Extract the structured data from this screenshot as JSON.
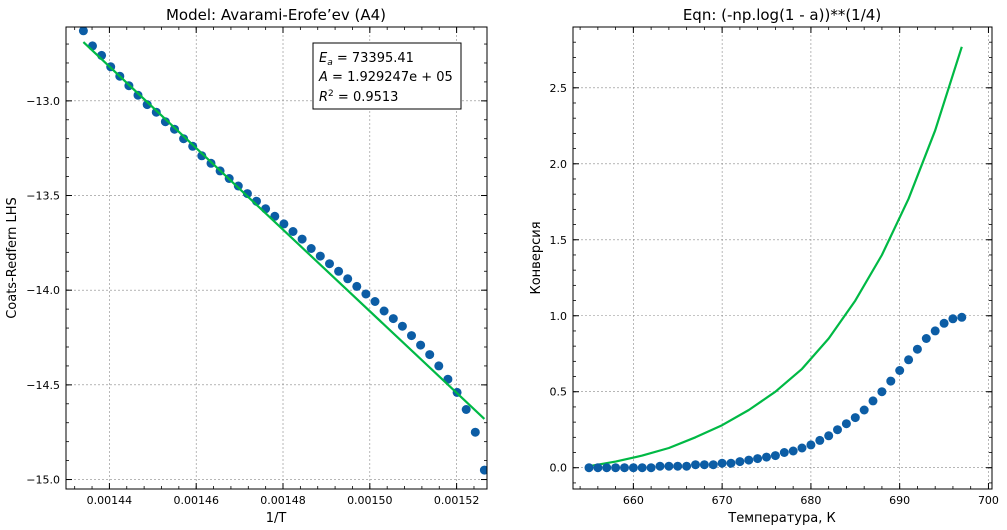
{
  "chart_data": [
    {
      "type": "scatter",
      "title": "Model: Avarami-Erofe’ev (A4)",
      "xlabel": "1/T",
      "ylabel": "Coats-Redfern LHS",
      "xlim": [
        0.00143,
        0.001527
      ],
      "ylim": [
        -15.05,
        -12.61
      ],
      "grid": true,
      "xticks": [
        0.00144,
        0.00146,
        0.00148,
        0.0015,
        0.00152
      ],
      "xtick_labels": [
        "0.00144",
        "0.00146",
        "0.00148",
        "0.00150",
        "0.00152"
      ],
      "yticks": [
        -13.0,
        -13.5,
        -14.0,
        -14.5,
        -15.0
      ],
      "ytick_labels": [
        "−13.0",
        "−13.5",
        "−14.0",
        "−14.5",
        "−15.0"
      ],
      "annotation": {
        "lines": [
          {
            "symbol": "E",
            "sub": "a",
            "text": " = 73395.41"
          },
          {
            "symbol": "A",
            "sub": "",
            "text": " = 1.929247e + 05"
          },
          {
            "symbol": "R",
            "sup": "2",
            "text": " = 0.9513"
          }
        ],
        "placement": "top-right"
      },
      "series": [
        {
          "kind": "scatter",
          "color": "#0c5da5",
          "x": [
            0.001434,
            0.0014361,
            0.0014382,
            0.0014403,
            0.0014424,
            0.0014445,
            0.0014466,
            0.0014487,
            0.0014508,
            0.0014529,
            0.001455,
            0.0014571,
            0.0014592,
            0.0014613,
            0.0014634,
            0.0014655,
            0.0014676,
            0.0014697,
            0.0014718,
            0.0014739,
            0.001476,
            0.0014781,
            0.0014802,
            0.0014823,
            0.0014844,
            0.0014865,
            0.0014886,
            0.0014907,
            0.0014928,
            0.0014949,
            0.001497,
            0.0014991,
            0.0015012,
            0.0015033,
            0.0015054,
            0.0015075,
            0.0015096,
            0.0015117,
            0.0015138,
            0.0015159,
            0.001518,
            0.0015201,
            0.0015222,
            0.0015243,
            0.0015264
          ],
          "y": [
            -12.63,
            -12.71,
            -12.76,
            -12.82,
            -12.87,
            -12.92,
            -12.97,
            -13.02,
            -13.06,
            -13.11,
            -13.15,
            -13.2,
            -13.24,
            -13.29,
            -13.33,
            -13.37,
            -13.41,
            -13.45,
            -13.49,
            -13.53,
            -13.57,
            -13.61,
            -13.65,
            -13.69,
            -13.73,
            -13.78,
            -13.82,
            -13.86,
            -13.9,
            -13.94,
            -13.98,
            -14.02,
            -14.06,
            -14.11,
            -14.15,
            -14.19,
            -14.24,
            -14.29,
            -14.34,
            -14.4,
            -14.47,
            -14.54,
            -14.63,
            -14.75,
            -14.95
          ]
        },
        {
          "kind": "line",
          "color": "#00b945",
          "x": [
            0.001434,
            0.0015264
          ],
          "y": [
            -12.69,
            -14.68
          ]
        }
      ]
    },
    {
      "type": "line",
      "title": "Eqn: (-np.log(1 - a))**(1/4)",
      "xlabel": "Температура, К",
      "ylabel": "Конверсия",
      "xlim": [
        653.2,
        700.4
      ],
      "ylim": [
        -0.14,
        2.9
      ],
      "grid": true,
      "xticks": [
        660,
        670,
        680,
        690,
        700
      ],
      "xtick_labels": [
        "660",
        "670",
        "680",
        "690",
        "700"
      ],
      "yticks": [
        0.0,
        0.5,
        1.0,
        1.5,
        2.0,
        2.5
      ],
      "ytick_labels": [
        "0.0",
        "0.5",
        "1.0",
        "1.5",
        "2.0",
        "2.5"
      ],
      "series": [
        {
          "kind": "line",
          "color": "#00b945",
          "x": [
            655,
            658,
            661,
            664,
            667,
            670,
            673,
            676,
            679,
            682,
            685,
            688,
            691,
            694,
            697
          ],
          "y": [
            0.01,
            0.04,
            0.08,
            0.13,
            0.2,
            0.28,
            0.38,
            0.5,
            0.65,
            0.85,
            1.1,
            1.4,
            1.77,
            2.22,
            2.77
          ]
        },
        {
          "kind": "scatter",
          "color": "#0c5da5",
          "x": [
            655,
            656,
            657,
            658,
            659,
            660,
            661,
            662,
            663,
            664,
            665,
            666,
            667,
            668,
            669,
            670,
            671,
            672,
            673,
            674,
            675,
            676,
            677,
            678,
            679,
            680,
            681,
            682,
            683,
            684,
            685,
            686,
            687,
            688,
            689,
            690,
            691,
            692,
            693,
            694,
            695,
            696,
            697
          ],
          "y": [
            0.0,
            0.0,
            0.0,
            0.0,
            0.0,
            0.0,
            0.0,
            0.0,
            0.01,
            0.01,
            0.01,
            0.01,
            0.02,
            0.02,
            0.02,
            0.03,
            0.03,
            0.04,
            0.05,
            0.06,
            0.07,
            0.08,
            0.1,
            0.11,
            0.13,
            0.15,
            0.18,
            0.21,
            0.25,
            0.29,
            0.33,
            0.38,
            0.44,
            0.5,
            0.57,
            0.64,
            0.71,
            0.78,
            0.85,
            0.9,
            0.95,
            0.98,
            0.99
          ]
        }
      ]
    }
  ]
}
